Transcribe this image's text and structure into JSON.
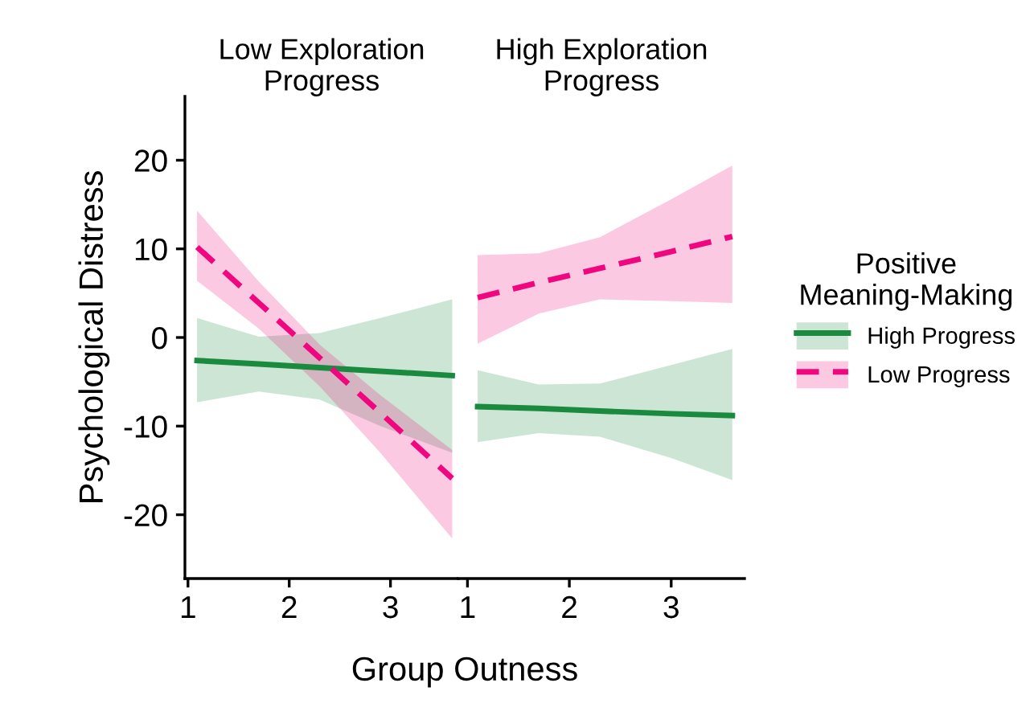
{
  "chart_data": [
    {
      "type": "line",
      "title": "Low Exploration\nProgress",
      "xlabel": "Group Outness",
      "ylabel": "Psychological Distress",
      "legend_title": "Positive\nMeaning-Making",
      "xlim": [
        0.97,
        3.67
      ],
      "xticks": [
        1,
        2,
        3
      ],
      "ylim": [
        -27.2,
        27.2
      ],
      "yticks": [
        -20,
        -10,
        0,
        10,
        20
      ],
      "grid": false,
      "legend": "right",
      "marker": "none",
      "series": [
        {
          "name": "High Progress",
          "color": "#1a8a3f",
          "line_style": "solid",
          "x": [
            1.09,
            1.7,
            2.3,
            2.9,
            3.61
          ],
          "values": [
            -2.6,
            -3.0,
            -3.4,
            -3.8,
            -4.3
          ],
          "lower": [
            -7.3,
            -6.1,
            -7.0,
            -10.0,
            -13.0
          ],
          "upper": [
            2.2,
            0.1,
            0.5,
            2.2,
            4.3
          ]
        },
        {
          "name": "Low Progress",
          "color": "#f0077f",
          "line_style": "dashed",
          "x": [
            1.09,
            1.7,
            2.3,
            2.9,
            3.61
          ],
          "values": [
            10.2,
            3.9,
            -2.3,
            -8.5,
            -15.9
          ],
          "lower": [
            6.4,
            1.0,
            -5.5,
            -13.0,
            -22.7
          ],
          "upper": [
            14.3,
            6.3,
            -0.8,
            -6.5,
            -12.7
          ]
        }
      ]
    },
    {
      "type": "line",
      "title": "High Exploration\nProgress",
      "xlim": [
        0.91,
        3.72
      ],
      "xticks": [
        1,
        2,
        3
      ],
      "ylim": [
        -27.2,
        27.2
      ],
      "tick_labels": "x",
      "grid": false,
      "marker": "none",
      "series": [
        {
          "color": "#1a8a3f",
          "line_style": "solid",
          "x": [
            1.1,
            1.7,
            2.3,
            3.0,
            3.6
          ],
          "values": [
            -7.8,
            -8.0,
            -8.3,
            -8.6,
            -8.8
          ],
          "lower": [
            -11.8,
            -10.8,
            -11.2,
            -13.6,
            -16.1
          ],
          "upper": [
            -3.7,
            -5.3,
            -5.2,
            -3.1,
            -1.3
          ]
        },
        {
          "color": "#f0077f",
          "line_style": "dashed",
          "x": [
            1.1,
            1.7,
            2.3,
            3.0,
            3.6
          ],
          "values": [
            4.5,
            6.2,
            7.8,
            9.7,
            11.4
          ],
          "lower": [
            -0.7,
            2.7,
            4.3,
            4.1,
            3.9
          ],
          "upper": [
            9.3,
            9.5,
            11.3,
            15.6,
            19.4
          ]
        }
      ]
    }
  ]
}
